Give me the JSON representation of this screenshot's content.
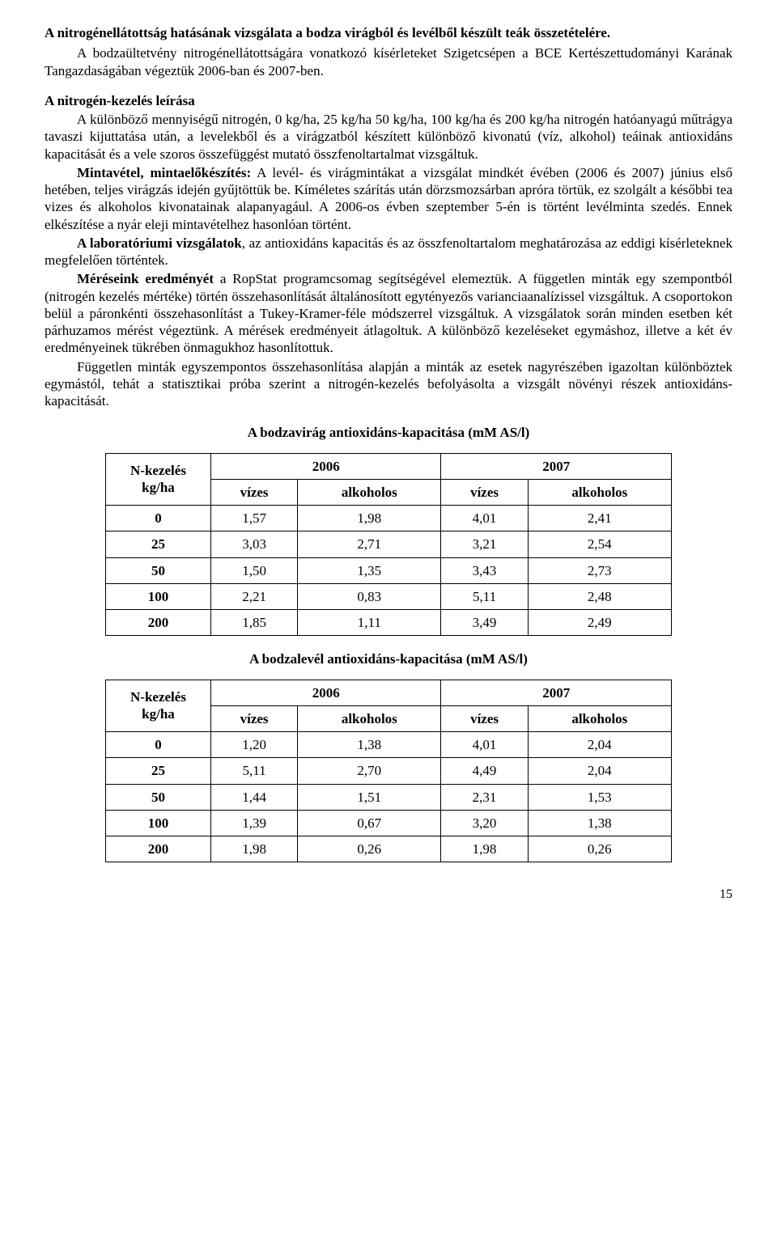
{
  "title": "A nitrogénellátottság hatásának vizsgálata a bodza virágból és levélből készült teák összetételére.",
  "para_intro": "A bodzaültetvény nitrogénellátottságára vonatkozó kísérleteket Szigetcsépen a BCE Kertészettudományi Karának Tangazdaságában végeztük 2006-ban és 2007-ben.",
  "heading_nitrogen": "A nitrogén-kezelés leírása",
  "para1": "A különböző mennyiségű nitrogén, 0 kg/ha, 25 kg/ha 50 kg/ha, 100 kg/ha és 200 kg/ha nitrogén hatóanyagú műtrágya tavaszi kijuttatása után, a levelekből és a virágzatból készített különböző kivonatú (víz, alkohol) teáinak antioxidáns kapacitását és a vele szoros összefüggést mutató összfenoltartalmat vizsgáltuk.",
  "para2_lead": "Mintavétel, mintaelőkészítés:",
  "para2_rest": " A levél- és virágmintákat a vizsgálat mindkét évében (2006 és 2007) június első hetében, teljes virágzás idején gyűjtöttük be. Kíméletes szárítás után dörzsmozsárban apróra törtük, ez szolgált a későbbi tea vizes és alkoholos kivonatainak alapanyagául. A 2006-os évben szeptember 5-én is történt levélminta szedés. Ennek elkészítése a nyár eleji mintavételhez hasonlóan történt.",
  "para3_lead": "A laboratóriumi vizsgálatok",
  "para3_rest": ", az antioxidáns kapacitás és az összfenoltartalom meghatározása az eddigi kísérleteknek megfelelően történtek.",
  "para4_lead": "Méréseink eredményét",
  "para4_rest": " a RopStat programcsomag segítségével elemeztük. A független minták egy szempontból (nitrogén kezelés mértéke) történ összehasonlítását általánosított egytényezős varianciaanalízissel vizsgáltuk. A csoportokon belül a páronkénti összehasonlítást a Tukey-Kramer-féle módszerrel vizsgáltuk. A vizsgálatok során minden esetben két párhuzamos mérést végeztünk. A mérések eredményeit átlagoltuk. A különböző kezeléseket egymáshoz, illetve a két év eredményeinek tükrében önmagukhoz hasonlítottuk.",
  "para5": "Független minták egyszempontos összehasonlítása alapján a minták az esetek nagyrészében igazoltan különböztek egymástól, tehát a statisztikai próba szerint a nitrogén-kezelés befolyásolta a vizsgált növényi részek antioxidáns-kapacitását.",
  "table1": {
    "caption": "A bodzavirág antioxidáns-kapacitása (mM AS/l)",
    "row_header": "N-kezelés kg/ha",
    "year1": "2006",
    "year2": "2007",
    "sub1": "vízes",
    "sub2": "alkoholos",
    "sub3": "vízes",
    "sub4": "alkoholos",
    "rows": [
      {
        "n": "0",
        "a": "1,57",
        "b": "1,98",
        "c": "4,01",
        "d": "2,41"
      },
      {
        "n": "25",
        "a": "3,03",
        "b": "2,71",
        "c": "3,21",
        "d": "2,54"
      },
      {
        "n": "50",
        "a": "1,50",
        "b": "1,35",
        "c": "3,43",
        "d": "2,73"
      },
      {
        "n": "100",
        "a": "2,21",
        "b": "0,83",
        "c": "5,11",
        "d": "2,48"
      },
      {
        "n": "200",
        "a": "1,85",
        "b": "1,11",
        "c": "3,49",
        "d": "2,49"
      }
    ]
  },
  "table2": {
    "caption": "A bodzalevél antioxidáns-kapacitása (mM AS/l)",
    "row_header": "N-kezelés kg/ha",
    "year1": "2006",
    "year2": "2007",
    "sub1": "vízes",
    "sub2": "alkoholos",
    "sub3": "vízes",
    "sub4": "alkoholos",
    "rows": [
      {
        "n": "0",
        "a": "1,20",
        "b": "1,38",
        "c": "4,01",
        "d": "2,04"
      },
      {
        "n": "25",
        "a": "5,11",
        "b": "2,70",
        "c": "4,49",
        "d": "2,04"
      },
      {
        "n": "50",
        "a": "1,44",
        "b": "1,51",
        "c": "2,31",
        "d": "1,53"
      },
      {
        "n": "100",
        "a": "1,39",
        "b": "0,67",
        "c": "3,20",
        "d": "1,38"
      },
      {
        "n": "200",
        "a": "1,98",
        "b": "0,26",
        "c": "1,98",
        "d": "0,26"
      }
    ]
  },
  "page_number": "15"
}
